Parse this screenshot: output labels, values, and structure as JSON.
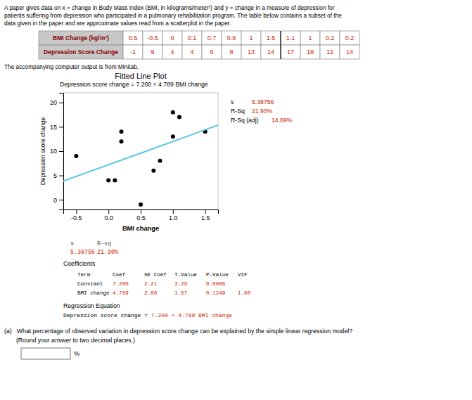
{
  "chart_data": {
    "type": "scatter",
    "title": "Fitted Line Plot",
    "annotations": [
      "Depression score change = 7.200 + 4.789 BMI change"
    ],
    "xlabel": "BMI change",
    "ylabel": "Depression score change",
    "xlim": [
      -0.7,
      1.7
    ],
    "ylim": [
      -2,
      22
    ],
    "xticks": [
      -0.5,
      {
        "value": 0.0,
        "label": "0.0"
      },
      0.5,
      {
        "value": 1.0,
        "label": "1.0"
      },
      1.5
    ],
    "yticks": [
      0,
      5,
      10,
      15,
      20
    ],
    "grid": false,
    "series": [
      {
        "type": "scatter",
        "color": "#000000",
        "marker": "circle",
        "x": [
          0.5,
          -0.5,
          0.0,
          0.1,
          0.7,
          0.8,
          1.0,
          1.5,
          1.1,
          1.0,
          0.2,
          0.2
        ],
        "values": [
          -1,
          9,
          4,
          4,
          6,
          8,
          13,
          14,
          17,
          18,
          12,
          14
        ]
      },
      {
        "type": "line",
        "color": "#5bc8e0",
        "line_style": "solid",
        "x": [
          -0.7,
          1.7
        ],
        "values": [
          3.8477,
          15.3413
        ]
      }
    ]
  },
  "page": {
    "intro": [
      "A paper gives data on x = change in Body Mass Index (BMI, in kilograms/meter²) and y = change in a measure of depression for",
      "patients suffering from depression who participated in a pulmonary rehabilitation program. The table below contains a subset of the",
      "data given in the paper and are approximate values read from a scatterplot in the paper."
    ],
    "table": {
      "row_labels": [
        "BMI Change (kg/m²)",
        "Depression Score Change"
      ],
      "rows": [
        [
          "0.5",
          "-0.5",
          "0",
          "0.1",
          "0.7",
          "0.8",
          "1",
          "1.5",
          "1.1",
          "1",
          "0.2",
          "0.2"
        ],
        [
          "-1",
          "9",
          "4",
          "4",
          "6",
          "8",
          "13",
          "14",
          "17",
          "18",
          "12",
          "14"
        ]
      ]
    },
    "note": "The accompanying computer output is from Minitab.",
    "stats": [
      [
        "s",
        "5.38756"
      ],
      [
        "R-Sq",
        "21.90%"
      ],
      [
        "R-Sq (adj)",
        "14.09%"
      ]
    ],
    "summary": {
      "columns": [
        "s",
        "R-sq"
      ],
      "values": [
        "5.38756",
        "21.90%"
      ]
    },
    "coefficients": {
      "title": "Coefficients",
      "columns": [
        "Term",
        "Coef",
        "SE Coef",
        "T-Value",
        "P-Value",
        "VIF"
      ],
      "rows": [
        [
          "Constant",
          "7.200",
          "2.21",
          "3.26",
          "0.0086"
        ],
        [
          "BMI change",
          "4.789",
          "2.86",
          "1.67",
          "0.1249",
          "1.00"
        ]
      ]
    },
    "equation": {
      "title": "Regression Equation",
      "parts": [
        "Depression score change = ",
        "7.200 + 4.789 BMI change"
      ]
    },
    "question": [
      "(a)   What percentage of observed variation in depression score change can be explained by the simple linear regression model?",
      "       (Round your answer to two decimal places.)"
    ],
    "answer_unit": "%",
    "color": "#cc2200"
  }
}
